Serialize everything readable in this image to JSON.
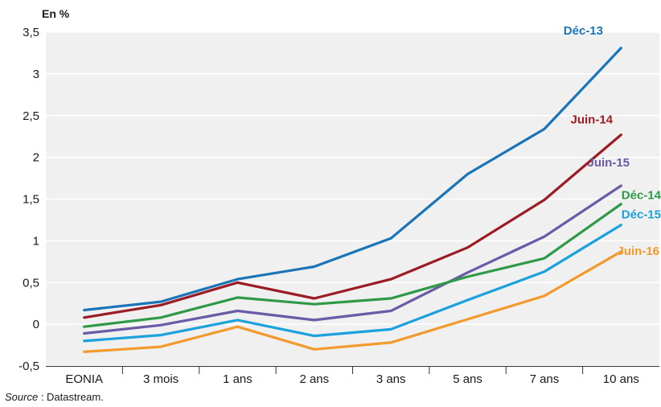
{
  "chart_data": {
    "type": "line",
    "unit_label": "En %",
    "categories": [
      "EONIA",
      "3 mois",
      "1 ans",
      "2 ans",
      "3 ans",
      "5 ans",
      "7 ans",
      "10 ans"
    ],
    "ylim": [
      -0.5,
      3.5
    ],
    "yticks": [
      "-0,5",
      "0",
      "0,5",
      "1",
      "1,5",
      "2",
      "2,5",
      "3",
      "3,5"
    ],
    "grid": "horizontal",
    "series": [
      {
        "name": "Déc-13",
        "color": "#1a74b8",
        "values": [
          0.17,
          0.27,
          0.54,
          0.69,
          1.03,
          1.8,
          2.34,
          3.31
        ]
      },
      {
        "name": "Juin-14",
        "color": "#9b1c24",
        "values": [
          0.08,
          0.23,
          0.5,
          0.31,
          0.54,
          0.92,
          1.49,
          2.27
        ]
      },
      {
        "name": "Juin-15",
        "color": "#6b5aa6",
        "values": [
          -0.11,
          -0.01,
          0.16,
          0.05,
          0.16,
          0.62,
          1.05,
          1.66
        ]
      },
      {
        "name": "Déc-14",
        "color": "#2e9a47",
        "values": [
          -0.03,
          0.08,
          0.32,
          0.24,
          0.31,
          0.57,
          0.79,
          1.44
        ]
      },
      {
        "name": "Déc-15",
        "color": "#1ba1de",
        "values": [
          -0.2,
          -0.13,
          0.05,
          -0.14,
          -0.06,
          0.29,
          0.63,
          1.19
        ]
      },
      {
        "name": "Juin-16",
        "color": "#f39a2d",
        "values": [
          -0.33,
          -0.27,
          -0.03,
          -0.3,
          -0.22,
          0.06,
          0.34,
          0.87
        ]
      }
    ]
  },
  "source": {
    "label": "Source",
    "text": " : Datastream."
  }
}
